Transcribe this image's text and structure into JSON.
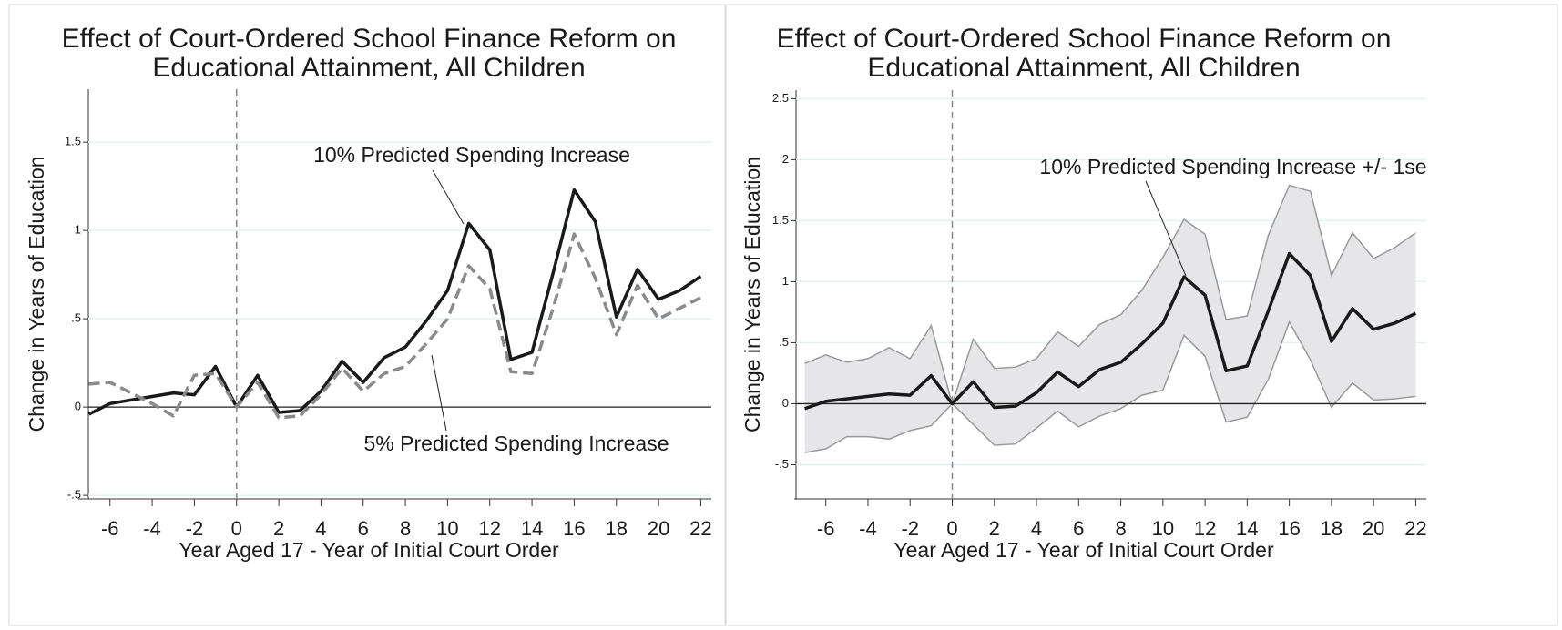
{
  "chart_data": [
    {
      "type": "line",
      "title": [
        "Effect of Court-Ordered School Finance Reform on",
        "Educational Attainment, All Children"
      ],
      "x_label": "Year Aged 17 - Year of Initial Court Order",
      "y_label": "Change in Years of Education",
      "x": [
        -7,
        -6,
        -5,
        -4,
        -3,
        -2,
        -1,
        0,
        1,
        2,
        3,
        4,
        5,
        6,
        7,
        8,
        9,
        10,
        11,
        12,
        13,
        14,
        15,
        16,
        17,
        18,
        19,
        20,
        21,
        22
      ],
      "series": [
        {
          "name": "10% Predicted Spending Increase",
          "color": "#1a1a1a",
          "dash": false,
          "values": [
            -0.04,
            0.02,
            0.04,
            0.06,
            0.08,
            0.07,
            0.23,
            0,
            0.18,
            -0.03,
            -0.02,
            0.09,
            0.26,
            0.14,
            0.28,
            0.34,
            0.49,
            0.66,
            1.04,
            0.89,
            0.27,
            0.31,
            0.76,
            1.23,
            1.05,
            0.51,
            0.78,
            0.61,
            0.66,
            0.74
          ]
        },
        {
          "name": "5% Predicted Spending Increase",
          "color": "#8a8a8a",
          "dash": true,
          "values": [
            0.13,
            0.14,
            0.08,
            0.02,
            -0.05,
            0.18,
            0.19,
            0,
            0.14,
            -0.06,
            -0.05,
            0.07,
            0.22,
            0.09,
            0.19,
            0.23,
            0.36,
            0.5,
            0.8,
            0.67,
            0.2,
            0.19,
            0.56,
            0.98,
            0.73,
            0.41,
            0.69,
            0.5,
            0.56,
            0.62
          ]
        }
      ],
      "xlim": [
        -7.5,
        22.5
      ],
      "xticks": [
        -6,
        -4,
        -2,
        0,
        2,
        4,
        6,
        8,
        10,
        12,
        14,
        16,
        18,
        20,
        22
      ],
      "ylim": [
        -0.52,
        1.8
      ],
      "yticks": [
        {
          "value": -0.5,
          "label": "-.5"
        },
        0,
        {
          "value": 0.5,
          "label": ".5"
        },
        1,
        1.5
      ],
      "grid": true,
      "hline": 0,
      "vline": 0
    },
    {
      "type": "band",
      "title": [
        "Effect of Court-Ordered School Finance Reform on",
        "Educational Attainment, All Children"
      ],
      "x_label": "Year Aged 17 - Year of Initial Court Order",
      "y_label": "Change in Years of Education",
      "x": [
        -7,
        -6,
        -5,
        -4,
        -3,
        -2,
        -1,
        0,
        1,
        2,
        3,
        4,
        5,
        6,
        7,
        8,
        9,
        10,
        11,
        12,
        13,
        14,
        15,
        16,
        17,
        18,
        19,
        20,
        21,
        22
      ],
      "series": [
        {
          "name": "10% Predicted Spending Increase +/- 1se",
          "color": "#1a1a1a",
          "band_color": "#e6e6e8",
          "band_edge": "#9a9a9a",
          "values": [
            -0.04,
            0.02,
            0.04,
            0.06,
            0.08,
            0.07,
            0.23,
            0,
            0.18,
            -0.03,
            -0.02,
            0.09,
            0.26,
            0.14,
            0.28,
            0.34,
            0.49,
            0.66,
            1.04,
            0.89,
            0.27,
            0.31,
            0.76,
            1.23,
            1.05,
            0.51,
            0.78,
            0.61,
            0.66,
            0.74
          ],
          "upper": [
            0.33,
            0.4,
            0.34,
            0.37,
            0.46,
            0.37,
            0.64,
            0,
            0.53,
            0.29,
            0.3,
            0.37,
            0.59,
            0.47,
            0.65,
            0.73,
            0.93,
            1.2,
            1.51,
            1.39,
            0.69,
            0.72,
            1.38,
            1.79,
            1.74,
            1.05,
            1.4,
            1.19,
            1.28,
            1.4
          ],
          "lower": [
            -0.4,
            -0.37,
            -0.27,
            -0.27,
            -0.29,
            -0.22,
            -0.18,
            0,
            -0.17,
            -0.34,
            -0.33,
            -0.2,
            -0.06,
            -0.19,
            -0.1,
            -0.04,
            0.07,
            0.11,
            0.56,
            0.39,
            -0.15,
            -0.11,
            0.2,
            0.67,
            0.36,
            -0.03,
            0.17,
            0.03,
            0.04,
            0.06
          ]
        }
      ],
      "xlim": [
        -7.5,
        22.5
      ],
      "xticks": [
        -6,
        -4,
        -2,
        0,
        2,
        4,
        6,
        8,
        10,
        12,
        14,
        16,
        18,
        20,
        22
      ],
      "ylim": [
        -0.78,
        2.57
      ],
      "yticks": [
        {
          "value": -0.5,
          "label": "-.5"
        },
        0,
        {
          "value": 0.5,
          "label": ".5"
        },
        1,
        1.5,
        2,
        2.5
      ],
      "grid": true,
      "hline": 0,
      "vline": 0
    }
  ]
}
